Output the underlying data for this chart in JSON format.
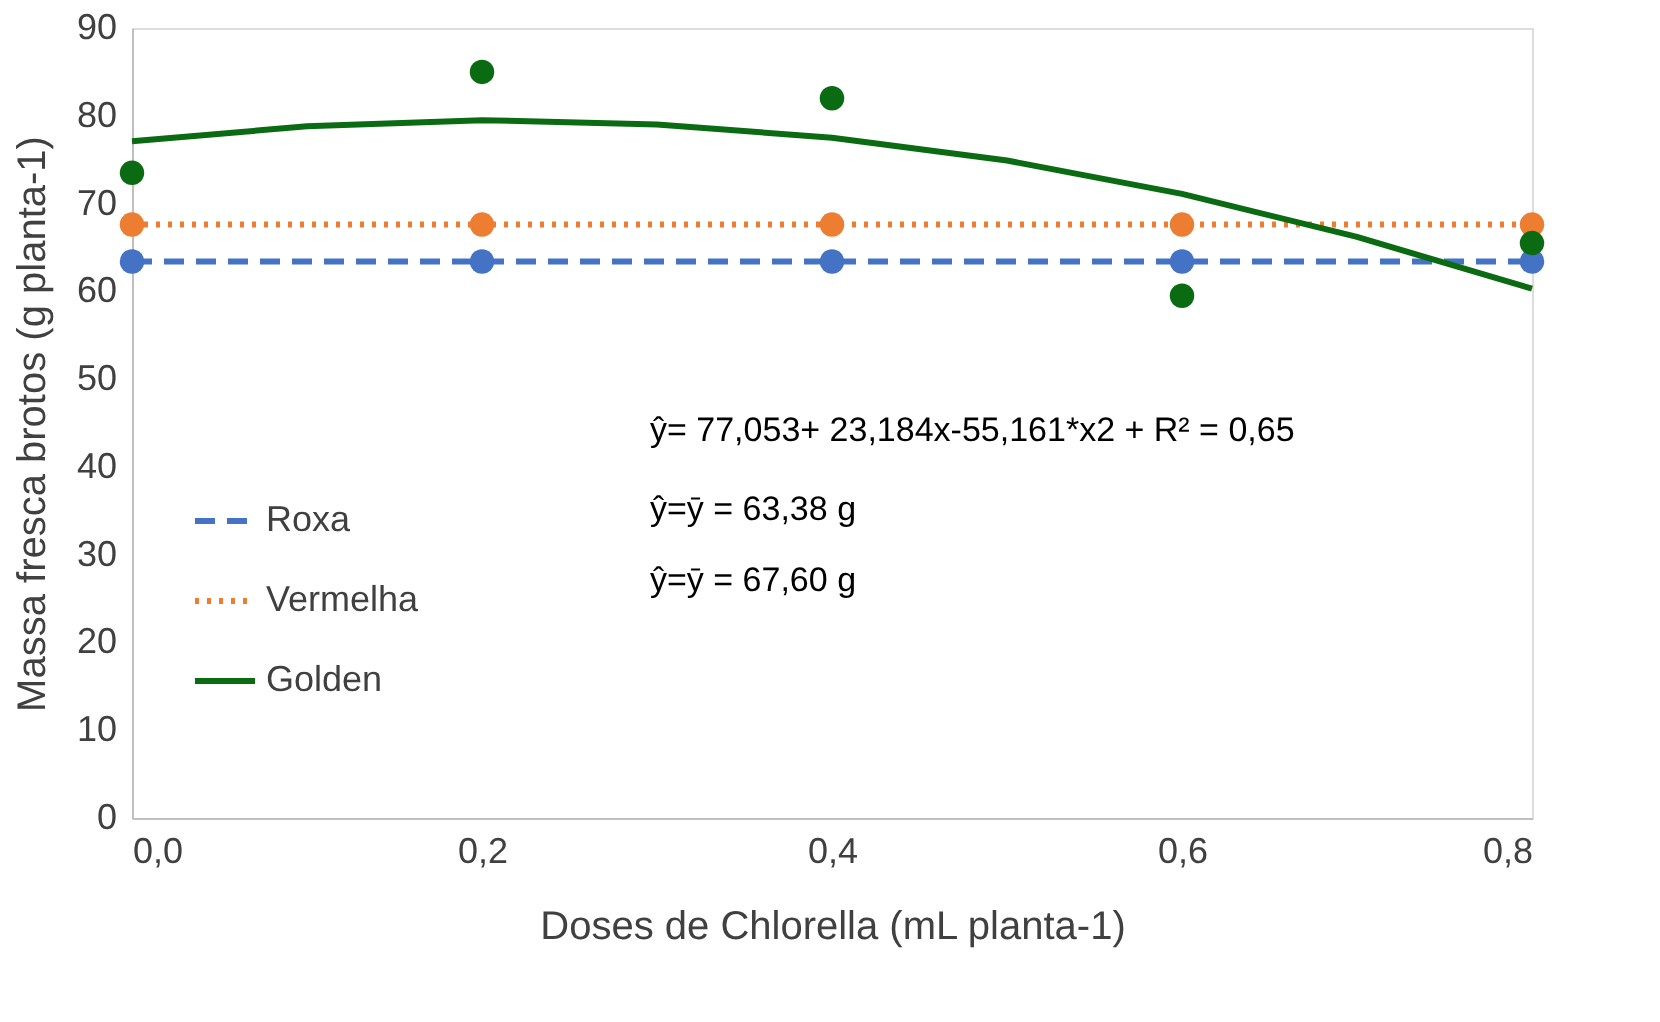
{
  "chart_data": {
    "type": "line",
    "xlabel": "Doses de Chlorella (mL planta-1)",
    "ylabel": "Massa fresca brotos (g planta-1)",
    "x": [
      0.0,
      0.2,
      0.4,
      0.6,
      0.8
    ],
    "series": [
      {
        "name": "Roxa",
        "color": "#4472c4",
        "line_style": "dashed",
        "marker": "circle",
        "values": [
          63.4,
          63.4,
          63.4,
          63.4,
          63.4
        ]
      },
      {
        "name": "Vermelha",
        "color": "#ed7d31",
        "line_style": "dotted",
        "marker": "circle",
        "values": [
          67.6,
          67.6,
          67.6,
          67.6,
          67.6
        ]
      },
      {
        "name": "Golden",
        "color": "#0b6b12",
        "line_style": "solid",
        "marker": "none",
        "x": [
          0.0,
          0.1,
          0.2,
          0.3,
          0.4,
          0.5,
          0.6,
          0.7,
          0.8
        ],
        "values": [
          77.1,
          78.8,
          79.5,
          79.0,
          77.5,
          74.9,
          71.1,
          66.2,
          60.3
        ]
      },
      {
        "type": "scatter",
        "color": "#0b6b12",
        "marker": "circle",
        "values": [
          73.5,
          85.0,
          82.0,
          59.5,
          65.5
        ]
      }
    ],
    "xlim": [
      0.0,
      0.8
    ],
    "xticks": [
      {
        "value": 0.0,
        "label": "0,0"
      },
      {
        "value": 0.2,
        "label": "0,2"
      },
      {
        "value": 0.4,
        "label": "0,4"
      },
      {
        "value": 0.6,
        "label": "0,6"
      },
      {
        "value": 0.8,
        "label": "0,8"
      }
    ],
    "ylim": [
      0,
      90
    ],
    "yticks": [
      0,
      10,
      20,
      30,
      40,
      50,
      60,
      70,
      80,
      90
    ],
    "grid": false,
    "legend": "center left",
    "annotations": [
      "ŷ= 77,053+ 23,184x-55,161*x2 + R² = 0,65",
      "ŷ=ȳ = 63,38 g",
      "ŷ=ȳ = 67,60 g"
    ]
  }
}
